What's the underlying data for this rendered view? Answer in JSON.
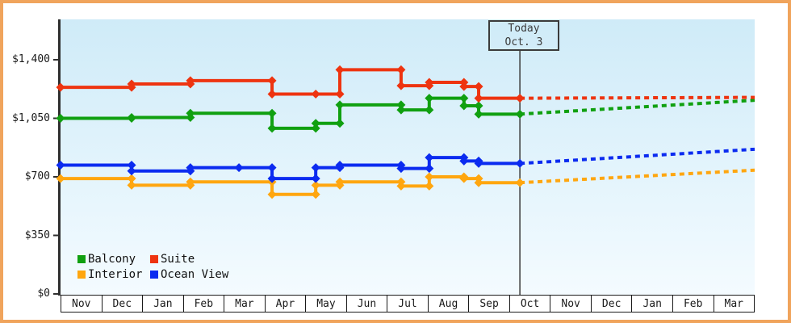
{
  "chart_data": {
    "type": "line",
    "style": "step-price-history-with-dotted-forecast",
    "y_axis": {
      "tick_labels": [
        "$1,400",
        "$1,050",
        "$700",
        "$350",
        "$0"
      ],
      "tick_values": [
        1400,
        1050,
        700,
        350,
        0
      ],
      "visible_max": 1640
    },
    "categories": [
      "Nov",
      "Dec",
      "Jan",
      "Feb",
      "Mar",
      "Apr",
      "May",
      "Jun",
      "Jul",
      "Aug",
      "Sep",
      "Oct",
      "Nov",
      "Dec",
      "Jan",
      "Feb",
      "Mar"
    ],
    "today": {
      "line1": "Today",
      "line2": "Oct. 3",
      "t": 11.25
    },
    "series": [
      {
        "name": "Balcony",
        "color": "#10a010",
        "points": [
          [
            0,
            1050
          ],
          [
            1.74,
            1055
          ],
          [
            3.18,
            1080
          ],
          [
            5.18,
            990
          ],
          [
            6.25,
            1020
          ],
          [
            6.84,
            1130
          ],
          [
            8.34,
            1100
          ],
          [
            9.03,
            1170
          ],
          [
            9.88,
            1125
          ],
          [
            10.24,
            1075
          ],
          [
            11.25,
            1075
          ]
        ],
        "forecast": [
          [
            11.25,
            1075
          ],
          [
            17,
            1158
          ]
        ]
      },
      {
        "name": "Interior",
        "color": "#ffa60f",
        "points": [
          [
            0,
            690
          ],
          [
            1.74,
            650
          ],
          [
            3.18,
            670
          ],
          [
            5.18,
            595
          ],
          [
            6.25,
            650
          ],
          [
            6.84,
            670
          ],
          [
            8.34,
            645
          ],
          [
            9.03,
            700
          ],
          [
            9.88,
            690
          ],
          [
            10.24,
            665
          ],
          [
            11.25,
            665
          ]
        ],
        "forecast": [
          [
            11.25,
            665
          ],
          [
            17,
            740
          ]
        ]
      },
      {
        "name": "Ocean View",
        "color": "#0b2bf0",
        "points": [
          [
            0,
            770
          ],
          [
            1.74,
            735
          ],
          [
            3.18,
            755
          ],
          [
            4.37,
            755
          ],
          [
            5.18,
            690
          ],
          [
            6.25,
            755
          ],
          [
            6.84,
            770
          ],
          [
            8.34,
            750
          ],
          [
            9.03,
            815
          ],
          [
            9.88,
            795
          ],
          [
            10.24,
            780
          ],
          [
            11.25,
            780
          ]
        ],
        "forecast": [
          [
            11.25,
            780
          ],
          [
            17,
            865
          ]
        ]
      },
      {
        "name": "Suite",
        "color": "#ee3410",
        "points": [
          [
            0,
            1235
          ],
          [
            1.74,
            1255
          ],
          [
            3.18,
            1275
          ],
          [
            5.18,
            1195
          ],
          [
            6.25,
            1195
          ],
          [
            6.84,
            1340
          ],
          [
            8.34,
            1245
          ],
          [
            9.03,
            1265
          ],
          [
            9.88,
            1240
          ],
          [
            10.24,
            1170
          ],
          [
            11.25,
            1170
          ]
        ],
        "forecast": [
          [
            11.25,
            1170
          ],
          [
            17,
            1175
          ]
        ]
      }
    ],
    "legend": {
      "position": "bottom-left",
      "entries": [
        {
          "label": "Balcony",
          "color": "#10a010"
        },
        {
          "label": "Suite",
          "color": "#ee3410"
        },
        {
          "label": "Interior",
          "color": "#ffa60f"
        },
        {
          "label": "Ocean View",
          "color": "#0b2bf0"
        }
      ]
    }
  }
}
